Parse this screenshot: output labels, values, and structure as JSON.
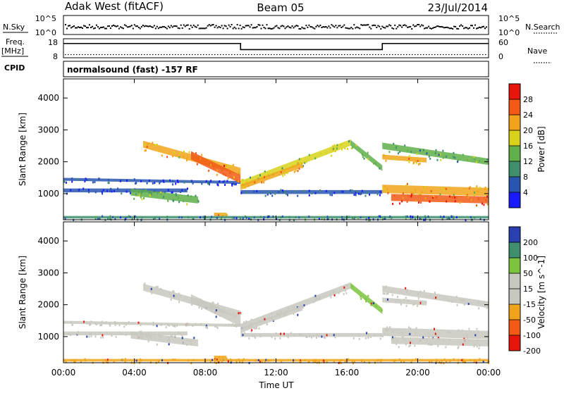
{
  "header": {
    "station": "Adak West (fitACF)",
    "beam": "Beam 05",
    "date": "23/Jul/2014"
  },
  "nsky_panel": {
    "left_label": "N.Sky",
    "right_label": "N.Search",
    "left_ticks": [
      "10^5",
      "10^0"
    ],
    "right_ticks": [
      "10^5",
      "10^0"
    ]
  },
  "freq_panel": {
    "left_label_1": "Freq.",
    "left_label_2": "[MHz]",
    "left_ticks": [
      "18",
      "8"
    ],
    "right_label": "Nave",
    "right_ticks": [
      "60",
      "0"
    ],
    "cpid_label": "CPID",
    "freq_steps": [
      {
        "start_h": 0,
        "end_h": 10,
        "value_mhz": 16.5
      },
      {
        "start_h": 10,
        "end_h": 18,
        "value_mhz": 12.0
      },
      {
        "start_h": 18,
        "end_h": 24,
        "value_mhz": 16.5
      }
    ],
    "nave_level": 10
  },
  "cpid_text": "normalsound (fast) -157 RF",
  "colors": {
    "power_scale": [
      "#1a1aff",
      "#2855b0",
      "#3f8f6e",
      "#5fb04a",
      "#d8d21a",
      "#f0a419",
      "#f25a16",
      "#e8150d"
    ],
    "velocity_scale": [
      "#e8150d",
      "#f25a16",
      "#f0a419",
      "#c8c8c0",
      "#c8c8c0",
      "#7dc43e",
      "#3f8f6e",
      "#2a3fb0"
    ],
    "range_line": "#3a3a3a"
  },
  "chart_data": [
    {
      "type": "heatmap",
      "title": "",
      "xlabel": "Time UT",
      "ylabel": "Slant Range [km]",
      "x_ticks": [
        "00:00",
        "04:00",
        "08:00",
        "12:00",
        "16:00",
        "20:00",
        "00:00"
      ],
      "y_ticks": [
        "1000",
        "2000",
        "3000",
        "4000"
      ],
      "xlim_hours": [
        0,
        24
      ],
      "ylim_km": [
        180,
        4600
      ],
      "colorbar": {
        "label": "Power [dB]",
        "ticks": [
          "4",
          "8",
          "12",
          "16",
          "20",
          "24",
          "28"
        ],
        "range": [
          0,
          32
        ]
      },
      "echo_bands": [
        {
          "from_h": 0.0,
          "to_h": 10.0,
          "r_start_km": 1450,
          "r_end_km": 1350,
          "thickness_km": 90,
          "value_db": 5
        },
        {
          "from_h": 0.0,
          "to_h": 7.0,
          "r_start_km": 1100,
          "r_end_km": 1100,
          "thickness_km": 120,
          "value_db": 4
        },
        {
          "from_h": 3.8,
          "to_h": 7.6,
          "r_start_km": 1050,
          "r_end_km": 800,
          "thickness_km": 220,
          "value_db": 14
        },
        {
          "from_h": 4.5,
          "to_h": 10.0,
          "r_start_km": 2550,
          "r_end_km": 1700,
          "thickness_km": 220,
          "value_db": 20
        },
        {
          "from_h": 7.2,
          "to_h": 10.0,
          "r_start_km": 2200,
          "r_end_km": 1450,
          "thickness_km": 260,
          "value_db": 24
        },
        {
          "from_h": 10.0,
          "to_h": 16.2,
          "r_start_km": 1300,
          "r_end_km": 2600,
          "thickness_km": 200,
          "value_db": 16
        },
        {
          "from_h": 10.0,
          "to_h": 13.5,
          "r_start_km": 1200,
          "r_end_km": 1900,
          "thickness_km": 160,
          "value_db": 22
        },
        {
          "from_h": 16.2,
          "to_h": 18.0,
          "r_start_km": 2600,
          "r_end_km": 1800,
          "thickness_km": 180,
          "value_db": 14
        },
        {
          "from_h": 18.0,
          "to_h": 24.0,
          "r_start_km": 2500,
          "r_end_km": 2000,
          "thickness_km": 200,
          "value_db": 12
        },
        {
          "from_h": 18.0,
          "to_h": 20.5,
          "r_start_km": 2150,
          "r_end_km": 2050,
          "thickness_km": 150,
          "value_db": 22
        },
        {
          "from_h": 18.0,
          "to_h": 24.0,
          "r_start_km": 1150,
          "r_end_km": 1050,
          "thickness_km": 260,
          "value_db": 20
        },
        {
          "from_h": 18.5,
          "to_h": 24.0,
          "r_start_km": 880,
          "r_end_km": 800,
          "thickness_km": 220,
          "value_db": 27
        },
        {
          "from_h": 10.0,
          "to_h": 18.0,
          "r_start_km": 1050,
          "r_end_km": 1050,
          "thickness_km": 120,
          "value_db": 6
        },
        {
          "from_h": 8.5,
          "to_h": 9.2,
          "r_start_km": 350,
          "r_end_km": 350,
          "thickness_km": 100,
          "value_db": 22
        },
        {
          "from_h": 0.0,
          "to_h": 24.0,
          "r_start_km": 260,
          "r_end_km": 260,
          "thickness_km": 80,
          "value_db": 8
        }
      ]
    },
    {
      "type": "heatmap",
      "title": "",
      "xlabel": "Time UT",
      "ylabel": "Slant Range [km]",
      "x_ticks": [
        "00:00",
        "04:00",
        "08:00",
        "12:00",
        "16:00",
        "20:00",
        "00:00"
      ],
      "y_ticks": [
        "1000",
        "2000",
        "3000",
        "4000"
      ],
      "xlim_hours": [
        0,
        24
      ],
      "ylim_km": [
        180,
        4600
      ],
      "colorbar": {
        "label": "Velocity [m s^-1]",
        "ticks": [
          "200",
          "100",
          "50",
          "15",
          "-15",
          "-50",
          "-100",
          "-200"
        ],
        "range": [
          -250,
          250
        ]
      },
      "echo_bands": [
        {
          "from_h": 0.0,
          "to_h": 10.0,
          "r_start_km": 1450,
          "r_end_km": 1350,
          "thickness_km": 90,
          "value_ms": 0
        },
        {
          "from_h": 0.0,
          "to_h": 7.0,
          "r_start_km": 1100,
          "r_end_km": 1100,
          "thickness_km": 120,
          "value_ms": 0
        },
        {
          "from_h": 3.8,
          "to_h": 7.6,
          "r_start_km": 1050,
          "r_end_km": 800,
          "thickness_km": 220,
          "value_ms": 0
        },
        {
          "from_h": 4.5,
          "to_h": 10.0,
          "r_start_km": 2550,
          "r_end_km": 1700,
          "thickness_km": 220,
          "value_ms": 0
        },
        {
          "from_h": 7.2,
          "to_h": 10.0,
          "r_start_km": 2200,
          "r_end_km": 1450,
          "thickness_km": 260,
          "value_ms": 0
        },
        {
          "from_h": 10.0,
          "to_h": 16.2,
          "r_start_km": 1300,
          "r_end_km": 2600,
          "thickness_km": 200,
          "value_ms": 0
        },
        {
          "from_h": 10.0,
          "to_h": 13.5,
          "r_start_km": 1200,
          "r_end_km": 1900,
          "thickness_km": 160,
          "value_ms": 0
        },
        {
          "from_h": 16.2,
          "to_h": 18.0,
          "r_start_km": 2600,
          "r_end_km": 1800,
          "thickness_km": 180,
          "value_ms": 30
        },
        {
          "from_h": 18.0,
          "to_h": 24.0,
          "r_start_km": 2500,
          "r_end_km": 2000,
          "thickness_km": 200,
          "value_ms": 0
        },
        {
          "from_h": 18.0,
          "to_h": 20.5,
          "r_start_km": 2150,
          "r_end_km": 2050,
          "thickness_km": 150,
          "value_ms": 0
        },
        {
          "from_h": 18.0,
          "to_h": 24.0,
          "r_start_km": 1150,
          "r_end_km": 1050,
          "thickness_km": 260,
          "value_ms": 0
        },
        {
          "from_h": 18.5,
          "to_h": 24.0,
          "r_start_km": 880,
          "r_end_km": 800,
          "thickness_km": 220,
          "value_ms": 0
        },
        {
          "from_h": 10.0,
          "to_h": 18.0,
          "r_start_km": 1050,
          "r_end_km": 1050,
          "thickness_km": 120,
          "value_ms": 0
        },
        {
          "from_h": 8.5,
          "to_h": 9.2,
          "r_start_km": 350,
          "r_end_km": 350,
          "thickness_km": 100,
          "value_ms": -60
        },
        {
          "from_h": 0.0,
          "to_h": 24.0,
          "r_start_km": 260,
          "r_end_km": 260,
          "thickness_km": 80,
          "value_ms": -60
        }
      ]
    }
  ]
}
